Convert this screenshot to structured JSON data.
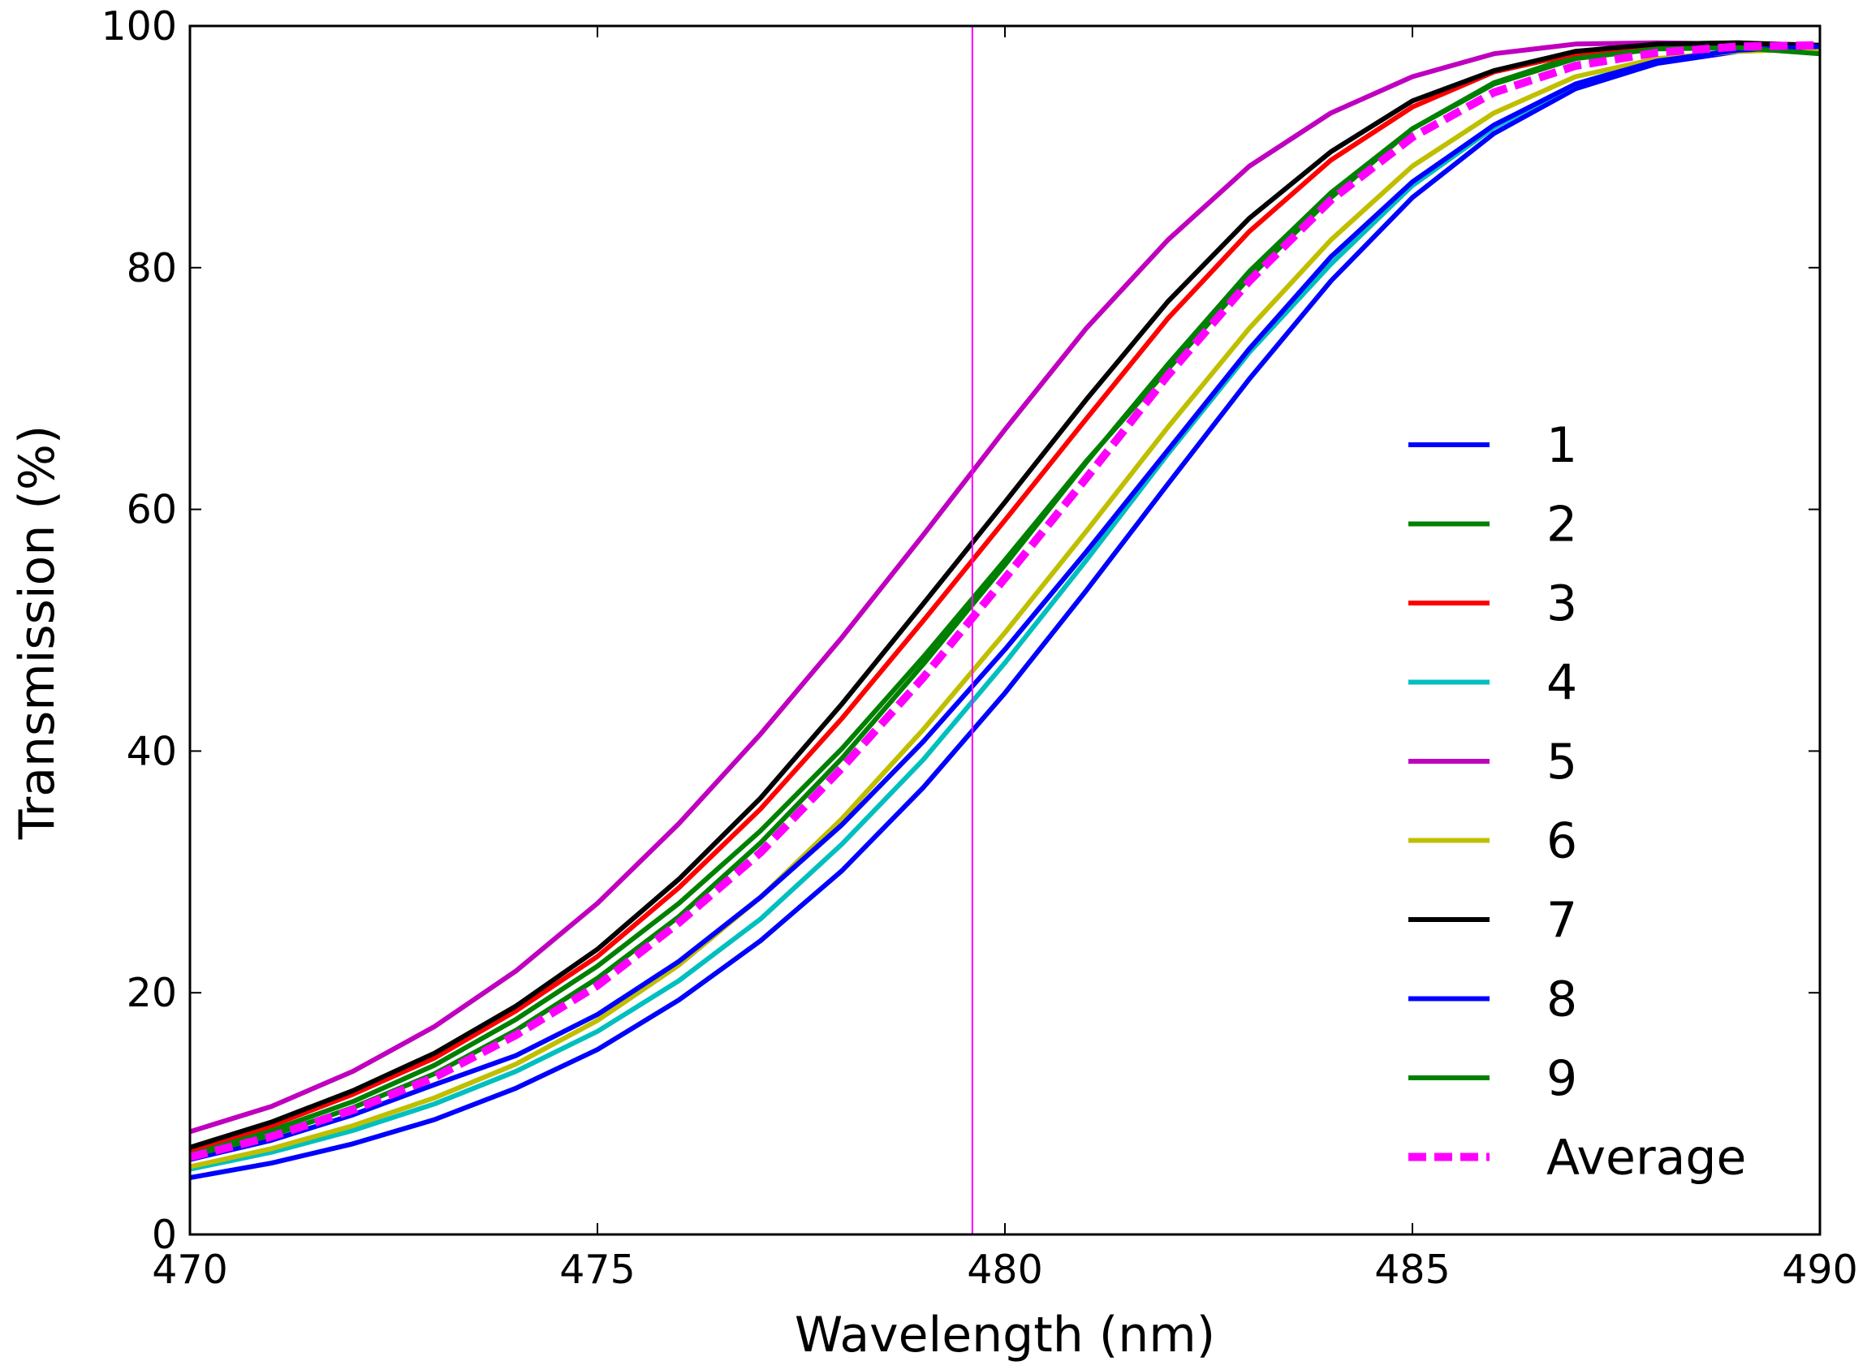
{
  "chart_data": {
    "type": "line",
    "title": "",
    "xlabel": "Wavelength (nm)",
    "ylabel": "Transmission (%)",
    "xlim": [
      470,
      490
    ],
    "ylim": [
      0,
      100
    ],
    "xticks": [
      470,
      475,
      480,
      485,
      490
    ],
    "yticks": [
      0,
      20,
      40,
      60,
      80,
      100
    ],
    "xtick_labels": [
      "470",
      "475",
      "480",
      "485",
      "490"
    ],
    "ytick_labels": [
      "0",
      "20",
      "40",
      "60",
      "80",
      "100"
    ],
    "legend_position": "lower-right",
    "vertical_marker": {
      "x": 479.6,
      "color": "#ff00ff"
    },
    "x": [
      470,
      471,
      472,
      473,
      474,
      475,
      476,
      477,
      478,
      479,
      480,
      481,
      482,
      483,
      484,
      485,
      486,
      487,
      488,
      489,
      490
    ],
    "series": [
      {
        "name": "1",
        "color": "#0000ff",
        "style": "solid",
        "values": [
          4.7,
          5.9,
          7.5,
          9.5,
          12.1,
          15.3,
          19.4,
          24.3,
          30.1,
          37,
          44.8,
          53.3,
          62.1,
          70.8,
          78.9,
          85.8,
          91.1,
          94.8,
          96.9,
          97.9,
          98.2
        ]
      },
      {
        "name": "2",
        "color": "#008000",
        "style": "solid",
        "values": [
          6.8,
          8.6,
          11,
          14,
          17.8,
          22.2,
          27.4,
          33.4,
          40.2,
          47.8,
          55.8,
          64,
          71.6,
          79.2,
          85.8,
          91.5,
          95.3,
          97.5,
          98.5,
          98.6,
          98.3
        ]
      },
      {
        "name": "3",
        "color": "#ff0000",
        "style": "solid",
        "values": [
          7,
          9,
          11.6,
          14.6,
          18.5,
          23,
          28.7,
          35.2,
          42.7,
          50.8,
          59.1,
          67.5,
          75.8,
          83,
          88.9,
          93.3,
          96.2,
          97.7,
          98.4,
          98.5,
          98.3
        ]
      },
      {
        "name": "4",
        "color": "#00bfbf",
        "style": "solid",
        "values": [
          5.4,
          6.8,
          8.6,
          10.8,
          13.5,
          16.8,
          21,
          26.1,
          32.3,
          39.3,
          47.3,
          55.8,
          64.6,
          73,
          80.3,
          86.8,
          91.6,
          95.2,
          97.2,
          98,
          98.1
        ]
      },
      {
        "name": "5",
        "color": "#bf00bf",
        "style": "solid",
        "values": [
          8.5,
          10.6,
          13.5,
          17.2,
          21.8,
          27.4,
          34,
          41.4,
          49.4,
          57.9,
          66.6,
          75,
          82.3,
          88.4,
          92.8,
          95.8,
          97.7,
          98.5,
          98.6,
          98.5,
          98.4
        ]
      },
      {
        "name": "6",
        "color": "#bfbf00",
        "style": "solid",
        "values": [
          5.6,
          7.1,
          9,
          11.3,
          14.1,
          17.7,
          22.3,
          27.9,
          34.4,
          41.8,
          49.8,
          58.2,
          66.8,
          75,
          82.3,
          88.4,
          92.8,
          95.8,
          97.3,
          97.9,
          98.1
        ]
      },
      {
        "name": "7",
        "color": "#000000",
        "style": "solid",
        "values": [
          7.2,
          9.3,
          11.9,
          15,
          18.9,
          23.6,
          29.4,
          36.1,
          43.9,
          52.2,
          60.6,
          69.1,
          77.2,
          84.1,
          89.6,
          93.8,
          96.3,
          97.9,
          98.5,
          98.6,
          98.4
        ]
      },
      {
        "name": "8",
        "color": "#0000ff",
        "style": "solid",
        "values": [
          6.2,
          7.8,
          9.9,
          12.4,
          14.8,
          18.2,
          22.6,
          27.9,
          33.9,
          40.8,
          48.4,
          56.5,
          64.9,
          73.3,
          80.9,
          87.1,
          91.8,
          95.2,
          97.1,
          98,
          98.3
        ]
      },
      {
        "name": "9",
        "color": "#008000",
        "style": "solid",
        "values": [
          6.5,
          8.2,
          10.5,
          13.3,
          16.9,
          21.2,
          26.3,
          32.4,
          39.4,
          47.2,
          55.4,
          63.9,
          72,
          79.7,
          86.2,
          91.5,
          95.2,
          97.3,
          98.1,
          98.2,
          97.7
        ]
      },
      {
        "name": "Average",
        "color": "#ff00ff",
        "style": "dashed",
        "values": [
          6.4,
          8.1,
          10.3,
          13,
          16.5,
          20.6,
          25.8,
          31.6,
          38.6,
          46.1,
          54.3,
          62.6,
          71.1,
          78.9,
          85.6,
          90.8,
          94.5,
          96.7,
          97.8,
          98.3,
          98.4
        ]
      }
    ]
  }
}
